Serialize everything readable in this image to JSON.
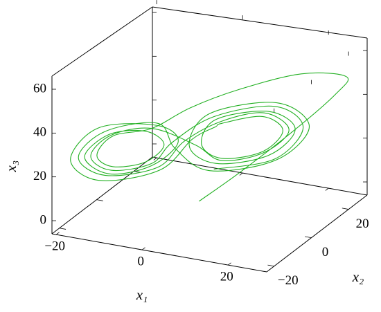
{
  "chart_data": {
    "type": "line3d",
    "xlabel": "x₁",
    "ylabel": "x₂",
    "zlabel": "x₃",
    "xlim": [
      -21,
      29
    ],
    "ylim": [
      -24,
      30
    ],
    "zlim": [
      -6,
      66
    ],
    "xticks": [
      {
        "value": -20,
        "label": "−20"
      },
      0,
      20
    ],
    "yticks": [
      {
        "value": -20,
        "label": "−20"
      },
      0,
      20
    ],
    "zticks": [
      0,
      20,
      40,
      60
    ],
    "series": [
      {
        "color": "#22b022",
        "x": [
          2,
          8,
          16,
          23,
          25,
          18,
          8,
          0,
          -6,
          -12,
          -14,
          -12,
          -7,
          -4,
          -7,
          -12,
          -16,
          -12,
          -6,
          -2,
          -5,
          -14,
          -18,
          -14,
          -5,
          0,
          4,
          6,
          12,
          15,
          12,
          6,
          3,
          5,
          13,
          17,
          13,
          5,
          1,
          4,
          14,
          19,
          14,
          4,
          -1,
          -5,
          -13,
          -17,
          -13,
          -5,
          -1,
          6,
          12,
          16,
          12,
          6,
          2,
          -6,
          -12,
          -15,
          -12,
          -6,
          -3,
          5,
          14,
          18,
          14,
          5
        ],
        "y": [
          2,
          10,
          20,
          27,
          28,
          20,
          10,
          2,
          -5,
          -12,
          -16,
          -12,
          -6,
          -3,
          -6,
          -14,
          -18,
          -14,
          -5,
          0,
          -4,
          -15,
          -21,
          -15,
          -3,
          3,
          6,
          5,
          13,
          17,
          13,
          5,
          1,
          4,
          14,
          19,
          14,
          4,
          -1,
          3,
          16,
          22,
          16,
          3,
          -4,
          -4,
          -14,
          -19,
          -14,
          -4,
          1,
          5,
          14,
          18,
          14,
          5,
          0,
          -5,
          -13,
          -17,
          -13,
          -5,
          -1,
          3,
          15,
          21,
          15,
          3
        ],
        "z": [
          0,
          10,
          25,
          40,
          48,
          52,
          48,
          42,
          35,
          34,
          27,
          20,
          20,
          27,
          34,
          36,
          27,
          18,
          18,
          27,
          36,
          39,
          27,
          15,
          15,
          27,
          32,
          35,
          35,
          27,
          19,
          19,
          27,
          37,
          37,
          27,
          17,
          17,
          27,
          40,
          40,
          27,
          14,
          14,
          27,
          37,
          37,
          27,
          17,
          17,
          27,
          36,
          36,
          27,
          18,
          18,
          27,
          35,
          35,
          27,
          19,
          19,
          27,
          39,
          39,
          27,
          15,
          15
        ]
      }
    ]
  }
}
